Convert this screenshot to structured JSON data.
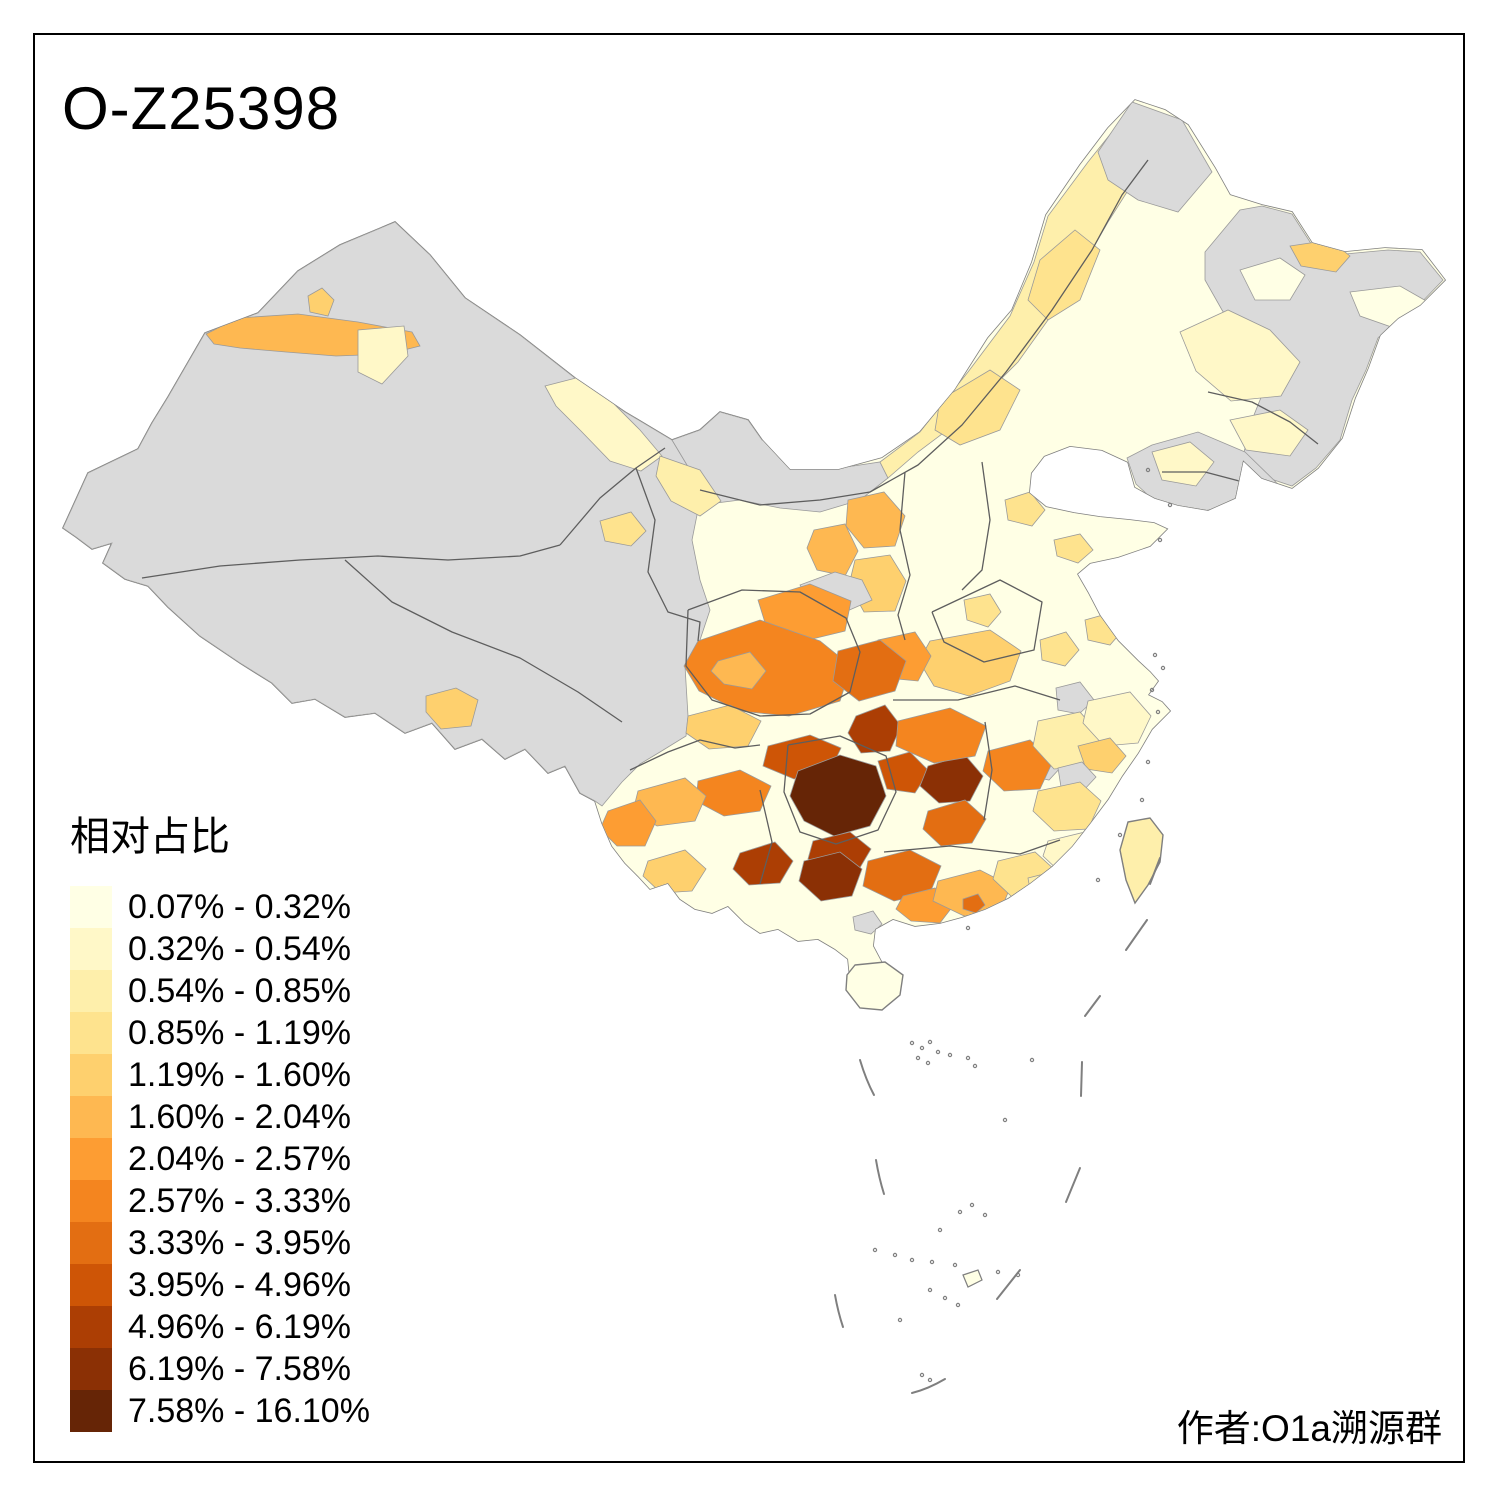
{
  "title": "O-Z25398",
  "attribution": "作者:O1a溯源群",
  "legend": {
    "title": "相对占比",
    "no_data_color": "#DADADA",
    "classes": [
      {
        "label": "0.07% - 0.32%",
        "color": "#FFFFE5"
      },
      {
        "label": "0.32% - 0.54%",
        "color": "#FFF8C8"
      },
      {
        "label": "0.54% - 0.85%",
        "color": "#FEEFAB"
      },
      {
        "label": "0.85% - 1.19%",
        "color": "#FEE38E"
      },
      {
        "label": "1.19% - 1.60%",
        "color": "#FED06E"
      },
      {
        "label": "1.60% - 2.04%",
        "color": "#FEB851"
      },
      {
        "label": "2.04% - 2.57%",
        "color": "#FD9D33"
      },
      {
        "label": "2.57% - 3.33%",
        "color": "#F4851F"
      },
      {
        "label": "3.33% - 3.95%",
        "color": "#E36E12"
      },
      {
        "label": "3.95% - 4.96%",
        "color": "#CE5506"
      },
      {
        "label": "4.96% - 6.19%",
        "color": "#AC3E04"
      },
      {
        "label": "6.19% - 7.58%",
        "color": "#8B3005"
      },
      {
        "label": "7.58% - 16.10%",
        "color": "#662506"
      }
    ]
  },
  "map": {
    "type": "choropleth",
    "colors": {
      "province_border": "#5E5E5E",
      "prefecture_border": "#9A9A9A",
      "coastline": "#7F7F7F",
      "sea": "#FFFFFF",
      "frame": "#000000"
    },
    "notes": "China prefecture-level choropleth; grey = no data; darkest hotspot centered on Guizhou / Chongqing / Guangxi; west (Xinjiang, Tibet, Qinghai) mostly no data"
  }
}
